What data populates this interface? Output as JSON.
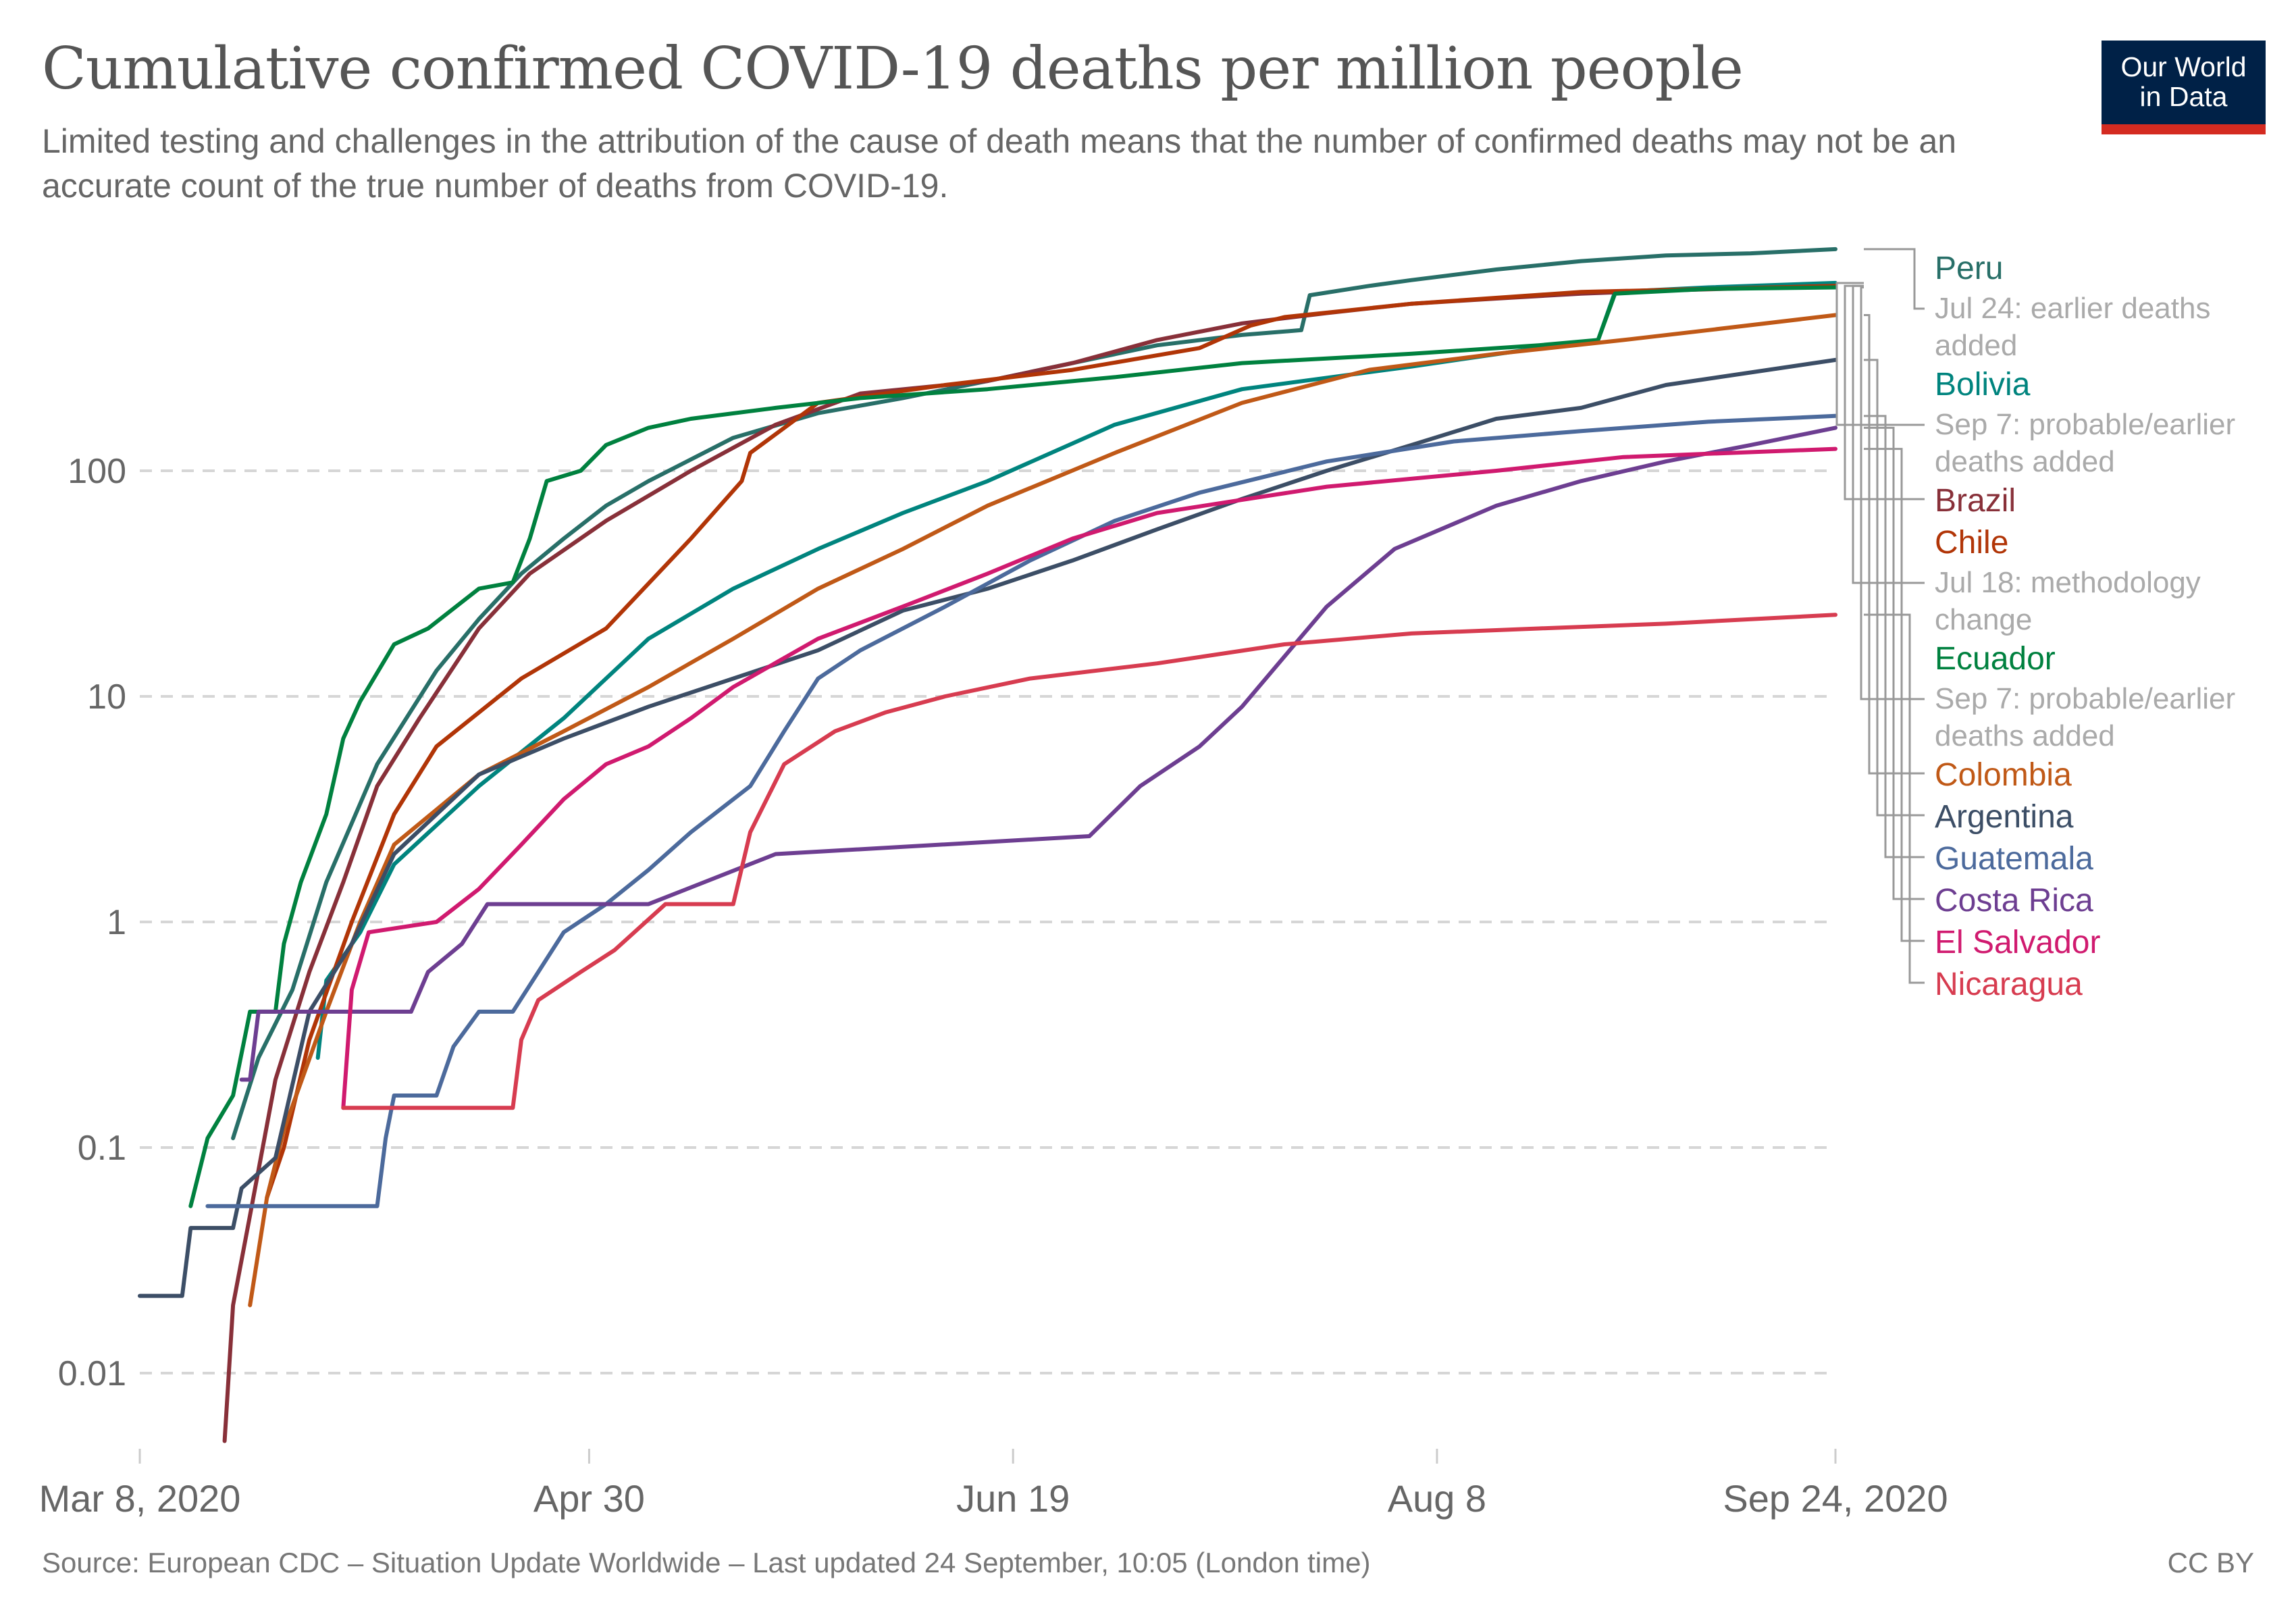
{
  "header": {
    "title": "Cumulative confirmed COVID-19 deaths per million people",
    "subtitle": "Limited testing and challenges in the attribution of the cause of death means that the number of confirmed deaths may not be an accurate count of the true number of deaths from COVID-19.",
    "logo_line1": "Our World",
    "logo_line2": "in Data",
    "logo_colors": {
      "background": "#002147",
      "stripe": "#d42b21"
    }
  },
  "footer": {
    "source": "Source: European CDC – Situation Update Worldwide – Last updated 24 September, 10:05 (London time)",
    "license": "CC BY"
  },
  "chart_data": {
    "type": "line",
    "title": "Cumulative confirmed COVID-19 deaths per million people",
    "xlabel": "",
    "ylabel": "",
    "yscale": "log",
    "ylim": [
      0.006,
      1000
    ],
    "xlim_days": [
      0,
      200
    ],
    "x_start_date": "2020-03-08",
    "x_unit": "days since Mar 8, 2020",
    "x_ticks": [
      {
        "day": 0,
        "label": "Mar 8, 2020"
      },
      {
        "day": 53,
        "label": "Apr 30"
      },
      {
        "day": 103,
        "label": "Jun 19"
      },
      {
        "day": 153,
        "label": "Aug 8"
      },
      {
        "day": 200,
        "label": "Sep 24, 2020"
      }
    ],
    "y_ticks": [
      {
        "value": 100,
        "label": "100"
      },
      {
        "value": 10,
        "label": "10"
      },
      {
        "value": 1,
        "label": "1"
      },
      {
        "value": 0.1,
        "label": "0.1"
      },
      {
        "value": 0.01,
        "label": "0.01"
      }
    ],
    "grid": "horizontal dashed",
    "legend_position": "right",
    "series": [
      {
        "name": "Peru",
        "color": "#286f68",
        "note": "Jul 24: earlier deaths added",
        "points": [
          [
            11,
            0.11
          ],
          [
            14,
            0.25
          ],
          [
            18,
            0.5
          ],
          [
            22,
            1.5
          ],
          [
            28,
            5
          ],
          [
            35,
            13
          ],
          [
            40,
            22
          ],
          [
            45,
            35
          ],
          [
            50,
            50
          ],
          [
            55,
            70
          ],
          [
            60,
            90
          ],
          [
            70,
            140
          ],
          [
            80,
            180
          ],
          [
            90,
            210
          ],
          [
            100,
            250
          ],
          [
            110,
            300
          ],
          [
            120,
            360
          ],
          [
            130,
            400
          ],
          [
            137,
            420
          ],
          [
            138,
            600
          ],
          [
            145,
            660
          ],
          [
            150,
            700
          ],
          [
            160,
            780
          ],
          [
            170,
            850
          ],
          [
            180,
            900
          ],
          [
            190,
            920
          ],
          [
            200,
            960
          ]
        ]
      },
      {
        "name": "Bolivia",
        "color": "#00847e",
        "note": "Sep 7: probable/earlier deaths added",
        "points": [
          [
            21,
            0.25
          ],
          [
            22,
            0.55
          ],
          [
            26,
            0.9
          ],
          [
            30,
            1.8
          ],
          [
            40,
            4
          ],
          [
            50,
            8
          ],
          [
            60,
            18
          ],
          [
            70,
            30
          ],
          [
            80,
            45
          ],
          [
            90,
            65
          ],
          [
            100,
            90
          ],
          [
            115,
            160
          ],
          [
            130,
            230
          ],
          [
            150,
            290
          ],
          [
            165,
            350
          ],
          [
            172,
            380
          ],
          [
            174,
            620
          ],
          [
            185,
            650
          ],
          [
            200,
            680
          ]
        ]
      },
      {
        "name": "Brazil",
        "color": "#883039",
        "note": "",
        "points": [
          [
            10,
            0.005
          ],
          [
            11,
            0.02
          ],
          [
            13,
            0.05
          ],
          [
            16,
            0.2
          ],
          [
            20,
            0.6
          ],
          [
            24,
            1.5
          ],
          [
            28,
            4
          ],
          [
            33,
            8
          ],
          [
            40,
            20
          ],
          [
            46,
            35
          ],
          [
            55,
            60
          ],
          [
            65,
            100
          ],
          [
            75,
            160
          ],
          [
            85,
            220
          ],
          [
            100,
            250
          ],
          [
            110,
            300
          ],
          [
            120,
            380
          ],
          [
            130,
            450
          ],
          [
            140,
            500
          ],
          [
            150,
            550
          ],
          [
            160,
            580
          ],
          [
            170,
            610
          ],
          [
            180,
            630
          ],
          [
            200,
            660
          ]
        ]
      },
      {
        "name": "Chile",
        "color": "#b13507",
        "note": "Jul 18: methodology change",
        "points": [
          [
            15,
            0.06
          ],
          [
            17,
            0.1
          ],
          [
            20,
            0.3
          ],
          [
            25,
            1
          ],
          [
            30,
            3
          ],
          [
            35,
            6
          ],
          [
            45,
            12
          ],
          [
            55,
            20
          ],
          [
            65,
            50
          ],
          [
            71,
            90
          ],
          [
            72,
            120
          ],
          [
            80,
            200
          ],
          [
            95,
            240
          ],
          [
            110,
            280
          ],
          [
            125,
            350
          ],
          [
            131,
            440
          ],
          [
            135,
            480
          ],
          [
            150,
            550
          ],
          [
            170,
            620
          ],
          [
            200,
            660
          ]
        ]
      },
      {
        "name": "Ecuador",
        "color": "#00813f",
        "note": "Sep 7: probable/earlier deaths added",
        "points": [
          [
            6,
            0.055
          ],
          [
            8,
            0.11
          ],
          [
            11,
            0.17
          ],
          [
            13,
            0.4
          ],
          [
            16,
            0.4
          ],
          [
            17,
            0.8
          ],
          [
            19,
            1.5
          ],
          [
            22,
            3
          ],
          [
            24,
            6.5
          ],
          [
            26,
            9.5
          ],
          [
            30,
            17
          ],
          [
            34,
            20
          ],
          [
            40,
            30
          ],
          [
            44,
            32
          ],
          [
            46,
            50
          ],
          [
            48,
            90
          ],
          [
            52,
            100
          ],
          [
            55,
            130
          ],
          [
            60,
            155
          ],
          [
            65,
            170
          ],
          [
            75,
            190
          ],
          [
            85,
            210
          ],
          [
            100,
            230
          ],
          [
            115,
            260
          ],
          [
            130,
            300
          ],
          [
            150,
            330
          ],
          [
            165,
            360
          ],
          [
            172,
            380
          ],
          [
            174,
            610
          ],
          [
            185,
            640
          ],
          [
            200,
            650
          ]
        ]
      },
      {
        "name": "Colombia",
        "color": "#c05917",
        "note": "",
        "points": [
          [
            13,
            0.02
          ],
          [
            15,
            0.06
          ],
          [
            17,
            0.12
          ],
          [
            22,
            0.4
          ],
          [
            26,
            1
          ],
          [
            30,
            2.2
          ],
          [
            40,
            4.5
          ],
          [
            50,
            7
          ],
          [
            60,
            11
          ],
          [
            70,
            18
          ],
          [
            80,
            30
          ],
          [
            90,
            45
          ],
          [
            100,
            70
          ],
          [
            115,
            120
          ],
          [
            130,
            200
          ],
          [
            145,
            280
          ],
          [
            160,
            330
          ],
          [
            175,
            380
          ],
          [
            185,
            420
          ],
          [
            200,
            490
          ]
        ]
      },
      {
        "name": "Argentina",
        "color": "#3c4e66",
        "note": "",
        "points": [
          [
            0,
            0.022
          ],
          [
            5,
            0.022
          ],
          [
            6,
            0.044
          ],
          [
            11,
            0.044
          ],
          [
            12,
            0.066
          ],
          [
            16,
            0.09
          ],
          [
            20,
            0.4
          ],
          [
            25,
            0.8
          ],
          [
            30,
            2
          ],
          [
            40,
            4.5
          ],
          [
            50,
            6.5
          ],
          [
            60,
            9
          ],
          [
            70,
            12
          ],
          [
            80,
            16
          ],
          [
            90,
            24
          ],
          [
            100,
            30
          ],
          [
            110,
            40
          ],
          [
            120,
            55
          ],
          [
            130,
            75
          ],
          [
            140,
            100
          ],
          [
            150,
            130
          ],
          [
            160,
            170
          ],
          [
            170,
            190
          ],
          [
            180,
            240
          ],
          [
            200,
            310
          ]
        ]
      },
      {
        "name": "Guatemala",
        "color": "#4c6a9c",
        "note": "",
        "points": [
          [
            8,
            0.055
          ],
          [
            28,
            0.055
          ],
          [
            29,
            0.11
          ],
          [
            30,
            0.17
          ],
          [
            35,
            0.17
          ],
          [
            37,
            0.28
          ],
          [
            40,
            0.4
          ],
          [
            44,
            0.4
          ],
          [
            47,
            0.6
          ],
          [
            50,
            0.9
          ],
          [
            55,
            1.2
          ],
          [
            60,
            1.7
          ],
          [
            65,
            2.5
          ],
          [
            72,
            4
          ],
          [
            76,
            7
          ],
          [
            80,
            12
          ],
          [
            85,
            16
          ],
          [
            95,
            25
          ],
          [
            105,
            40
          ],
          [
            115,
            60
          ],
          [
            125,
            80
          ],
          [
            140,
            110
          ],
          [
            155,
            135
          ],
          [
            170,
            150
          ],
          [
            185,
            165
          ],
          [
            200,
            175
          ]
        ]
      },
      {
        "name": "Costa Rica",
        "color": "#6d3e91",
        "note": "",
        "points": [
          [
            12,
            0.2
          ],
          [
            13,
            0.2
          ],
          [
            14,
            0.4
          ],
          [
            32,
            0.4
          ],
          [
            34,
            0.6
          ],
          [
            38,
            0.8
          ],
          [
            41,
            1.2
          ],
          [
            60,
            1.2
          ],
          [
            75,
            2
          ],
          [
            112,
            2.4
          ],
          [
            118,
            4
          ],
          [
            125,
            6
          ],
          [
            130,
            9
          ],
          [
            135,
            15
          ],
          [
            140,
            25
          ],
          [
            148,
            45
          ],
          [
            160,
            70
          ],
          [
            170,
            90
          ],
          [
            180,
            110
          ],
          [
            190,
            130
          ],
          [
            200,
            155
          ]
        ]
      },
      {
        "name": "El Salvador",
        "color": "#d01a6f",
        "note": "",
        "points": [
          [
            24,
            0.15
          ],
          [
            25,
            0.5
          ],
          [
            27,
            0.9
          ],
          [
            35,
            1
          ],
          [
            40,
            1.4
          ],
          [
            45,
            2.2
          ],
          [
            50,
            3.5
          ],
          [
            55,
            5
          ],
          [
            60,
            6
          ],
          [
            65,
            8
          ],
          [
            70,
            11
          ],
          [
            80,
            18
          ],
          [
            90,
            25
          ],
          [
            100,
            35
          ],
          [
            110,
            50
          ],
          [
            120,
            65
          ],
          [
            140,
            85
          ],
          [
            160,
            100
          ],
          [
            175,
            115
          ],
          [
            200,
            125
          ]
        ]
      },
      {
        "name": "Nicaragua",
        "color": "#d73c50",
        "note": "",
        "points": [
          [
            24,
            0.15
          ],
          [
            44,
            0.15
          ],
          [
            45,
            0.3
          ],
          [
            47,
            0.45
          ],
          [
            52,
            0.6
          ],
          [
            56,
            0.75
          ],
          [
            62,
            1.2
          ],
          [
            70,
            1.2
          ],
          [
            72,
            2.5
          ],
          [
            76,
            5
          ],
          [
            82,
            7
          ],
          [
            88,
            8.5
          ],
          [
            95,
            10
          ],
          [
            105,
            12
          ],
          [
            120,
            14
          ],
          [
            135,
            17
          ],
          [
            150,
            19
          ],
          [
            165,
            20
          ],
          [
            180,
            21
          ],
          [
            200,
            23
          ]
        ]
      }
    ]
  }
}
